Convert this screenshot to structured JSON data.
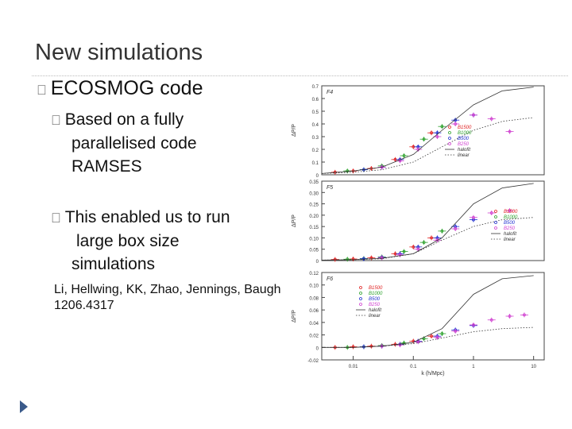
{
  "slide": {
    "title": "New simulations",
    "bullet1": {
      "marker": "",
      "text": "ECOSMOG code"
    },
    "bullet2": [
      {
        "marker": "",
        "line1": "Based on a fully",
        "line2": "parallelised code",
        "line3": "RAMSES"
      },
      {
        "marker": "",
        "line1": "This enabled us to run",
        "line2": "large box size",
        "line3": "simulations"
      }
    ],
    "reference": {
      "line1": "Li, Hellwing, KK, Zhao, Jennings, Baugh",
      "line2": "1206.4317"
    },
    "nav_icon": "next-slide-arrow-icon"
  },
  "chart_data": [
    {
      "type": "scatter",
      "panel_label": "F4",
      "xlabel": "",
      "ylabel": "ΔP/P",
      "xscale": "log",
      "xlim": [
        0.003,
        15
      ],
      "ylim": [
        0,
        0.7
      ],
      "yticks": [
        "0",
        "0.1",
        "0.2",
        "0.3",
        "0.4",
        "0.5",
        "0.6",
        "0.7"
      ],
      "xticks": [],
      "legend": [
        "B1500",
        "B1000",
        "B500",
        "B250",
        "halofit",
        "linear"
      ],
      "legend_position": "right",
      "series": [
        {
          "name": "B1500",
          "color": "#e02020",
          "x": [
            0.005,
            0.01,
            0.02,
            0.05,
            0.1,
            0.2
          ],
          "y": [
            0.02,
            0.03,
            0.05,
            0.12,
            0.22,
            0.33
          ]
        },
        {
          "name": "B1000",
          "color": "#2aa02a",
          "x": [
            0.008,
            0.015,
            0.03,
            0.07,
            0.15,
            0.3
          ],
          "y": [
            0.03,
            0.04,
            0.07,
            0.15,
            0.28,
            0.38
          ]
        },
        {
          "name": "B500",
          "color": "#2030d0",
          "x": [
            0.015,
            0.03,
            0.06,
            0.12,
            0.25,
            0.5,
            1.0
          ],
          "y": [
            0.04,
            0.06,
            0.12,
            0.22,
            0.33,
            0.43,
            0.47
          ]
        },
        {
          "name": "B250",
          "color": "#d040d0",
          "x": [
            0.03,
            0.06,
            0.12,
            0.25,
            0.5,
            1.0,
            2.0,
            4.0
          ],
          "y": [
            0.06,
            0.11,
            0.2,
            0.3,
            0.4,
            0.47,
            0.44,
            0.34
          ]
        },
        {
          "name": "halofit",
          "style": "solid",
          "x": [
            0.003,
            0.01,
            0.03,
            0.1,
            0.3,
            1,
            3,
            10
          ],
          "y": [
            0.01,
            0.03,
            0.06,
            0.16,
            0.35,
            0.55,
            0.66,
            0.69
          ]
        },
        {
          "name": "linear",
          "style": "dotted",
          "x": [
            0.003,
            0.01,
            0.03,
            0.1,
            0.3,
            1,
            3,
            10
          ],
          "y": [
            0.01,
            0.02,
            0.04,
            0.1,
            0.22,
            0.35,
            0.42,
            0.45
          ]
        }
      ]
    },
    {
      "type": "scatter",
      "panel_label": "F5",
      "xlabel": "",
      "ylabel": "ΔP/P",
      "xscale": "log",
      "xlim": [
        0.003,
        15
      ],
      "ylim": [
        0,
        0.35
      ],
      "yticks": [
        "0",
        "0.05",
        "0.10",
        "0.15",
        "0.20",
        "0.25",
        "0.30",
        "0.35"
      ],
      "xticks": [],
      "legend": [
        "B1500",
        "B1000",
        "B500",
        "B250",
        "halofit",
        "linear"
      ],
      "legend_position": "right",
      "series": [
        {
          "name": "B1500",
          "color": "#e02020",
          "x": [
            0.005,
            0.01,
            0.02,
            0.05,
            0.1,
            0.2
          ],
          "y": [
            0.005,
            0.007,
            0.012,
            0.03,
            0.06,
            0.1
          ]
        },
        {
          "name": "B1000",
          "color": "#2aa02a",
          "x": [
            0.008,
            0.015,
            0.03,
            0.07,
            0.15,
            0.3
          ],
          "y": [
            0.006,
            0.009,
            0.016,
            0.04,
            0.08,
            0.13
          ]
        },
        {
          "name": "B500",
          "color": "#2030d0",
          "x": [
            0.015,
            0.03,
            0.06,
            0.12,
            0.25,
            0.5,
            1.0
          ],
          "y": [
            0.008,
            0.014,
            0.03,
            0.06,
            0.1,
            0.15,
            0.18
          ]
        },
        {
          "name": "B250",
          "color": "#d040d0",
          "x": [
            0.03,
            0.06,
            0.12,
            0.25,
            0.5,
            1.0,
            2.0,
            4.0
          ],
          "y": [
            0.012,
            0.025,
            0.05,
            0.09,
            0.14,
            0.19,
            0.21,
            0.22
          ]
        },
        {
          "name": "halofit",
          "style": "solid",
          "x": [
            0.003,
            0.01,
            0.03,
            0.1,
            0.3,
            1,
            3,
            10
          ],
          "y": [
            0.002,
            0.004,
            0.01,
            0.03,
            0.1,
            0.25,
            0.32,
            0.34
          ]
        },
        {
          "name": "linear",
          "style": "dotted",
          "x": [
            0.003,
            0.01,
            0.03,
            0.1,
            0.3,
            1,
            3,
            10
          ],
          "y": [
            0.002,
            0.004,
            0.008,
            0.03,
            0.09,
            0.15,
            0.18,
            0.19
          ]
        }
      ]
    },
    {
      "type": "scatter",
      "panel_label": "F6",
      "xlabel": "k (h/Mpc)",
      "ylabel": "ΔP/P",
      "xscale": "log",
      "xlim": [
        0.003,
        15
      ],
      "ylim": [
        -0.02,
        0.12
      ],
      "yticks": [
        "-0.02",
        "0",
        "0.02",
        "0.04",
        "0.06",
        "0.08",
        "0.10",
        "0.12"
      ],
      "xticks": [
        "0.01",
        "0.1",
        "1",
        "10"
      ],
      "legend": [
        "B1500",
        "B1000",
        "B500",
        "B250",
        "halofit",
        "linear"
      ],
      "legend_position": "upper left",
      "series": [
        {
          "name": "B1500",
          "color": "#e02020",
          "x": [
            0.005,
            0.01,
            0.02,
            0.05,
            0.1,
            0.2
          ],
          "y": [
            0.0,
            0.001,
            0.002,
            0.005,
            0.01,
            0.018
          ]
        },
        {
          "name": "B1000",
          "color": "#2aa02a",
          "x": [
            0.008,
            0.015,
            0.03,
            0.07,
            0.15,
            0.3
          ],
          "y": [
            0.0,
            0.001,
            0.003,
            0.007,
            0.014,
            0.022
          ]
        },
        {
          "name": "B500",
          "color": "#2030d0",
          "x": [
            0.015,
            0.03,
            0.06,
            0.12,
            0.25,
            0.5,
            1.0
          ],
          "y": [
            0.001,
            0.002,
            0.005,
            0.01,
            0.018,
            0.028,
            0.035
          ]
        },
        {
          "name": "B250",
          "color": "#d040d0",
          "x": [
            0.03,
            0.06,
            0.12,
            0.25,
            0.5,
            1.0,
            2.0,
            4.0,
            7.0
          ],
          "y": [
            0.002,
            0.004,
            0.009,
            0.016,
            0.026,
            0.036,
            0.044,
            0.05,
            0.052
          ]
        },
        {
          "name": "halofit",
          "style": "solid",
          "x": [
            0.003,
            0.01,
            0.03,
            0.1,
            0.3,
            1,
            3,
            10
          ],
          "y": [
            0.0,
            0.0,
            0.002,
            0.008,
            0.03,
            0.085,
            0.11,
            0.115
          ]
        },
        {
          "name": "linear",
          "style": "dotted",
          "x": [
            0.003,
            0.01,
            0.03,
            0.1,
            0.3,
            1,
            3,
            10
          ],
          "y": [
            0.0,
            0.0,
            0.002,
            0.006,
            0.015,
            0.025,
            0.03,
            0.032
          ]
        }
      ]
    }
  ]
}
